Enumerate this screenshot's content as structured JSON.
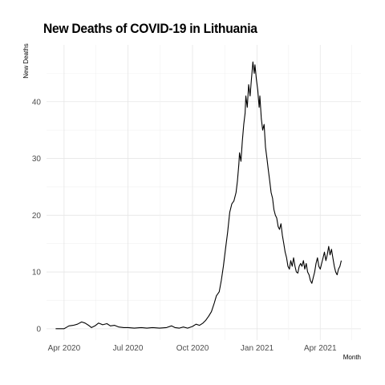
{
  "chart_data": {
    "type": "line",
    "title": "New Deaths of COVID-19 in Lithuania",
    "xlabel": "Month",
    "ylabel": "New Deaths",
    "x_start": "2020-03-07",
    "x_end": "2021-05-29",
    "ylim": [
      -2,
      50
    ],
    "y_ticks": [
      0,
      10,
      20,
      30,
      40
    ],
    "x_ticks": [
      {
        "date": "2020-04-01",
        "label": "Apr 2020"
      },
      {
        "date": "2020-07-01",
        "label": "Jul 2020"
      },
      {
        "date": "2020-10-01",
        "label": "Oct 2020"
      },
      {
        "date": "2021-01-01",
        "label": "Jan 2021"
      },
      {
        "date": "2021-04-01",
        "label": "Apr 2021"
      }
    ],
    "grid": true,
    "line_color": "#000000",
    "series": [
      {
        "name": "",
        "points": [
          [
            "2020-03-20",
            0
          ],
          [
            "2020-04-01",
            0
          ],
          [
            "2020-04-08",
            0.5
          ],
          [
            "2020-04-14",
            0.6
          ],
          [
            "2020-04-20",
            0.8
          ],
          [
            "2020-04-26",
            1.2
          ],
          [
            "2020-05-01",
            1.0
          ],
          [
            "2020-05-06",
            0.6
          ],
          [
            "2020-05-10",
            0.2
          ],
          [
            "2020-05-15",
            0.5
          ],
          [
            "2020-05-20",
            1.0
          ],
          [
            "2020-05-26",
            0.7
          ],
          [
            "2020-06-01",
            0.9
          ],
          [
            "2020-06-06",
            0.5
          ],
          [
            "2020-06-12",
            0.6
          ],
          [
            "2020-06-18",
            0.3
          ],
          [
            "2020-06-25",
            0.2
          ],
          [
            "2020-07-01",
            0.2
          ],
          [
            "2020-07-10",
            0.1
          ],
          [
            "2020-07-20",
            0.2
          ],
          [
            "2020-07-28",
            0.1
          ],
          [
            "2020-08-05",
            0.2
          ],
          [
            "2020-08-15",
            0.1
          ],
          [
            "2020-08-25",
            0.2
          ],
          [
            "2020-09-01",
            0.5
          ],
          [
            "2020-09-06",
            0.2
          ],
          [
            "2020-09-12",
            0.1
          ],
          [
            "2020-09-18",
            0.3
          ],
          [
            "2020-09-24",
            0.1
          ],
          [
            "2020-10-01",
            0.4
          ],
          [
            "2020-10-06",
            0.8
          ],
          [
            "2020-10-11",
            0.6
          ],
          [
            "2020-10-16",
            1.0
          ],
          [
            "2020-10-20",
            1.5
          ],
          [
            "2020-10-24",
            2.2
          ],
          [
            "2020-10-28",
            3.0
          ],
          [
            "2020-11-01",
            4.5
          ],
          [
            "2020-11-04",
            5.8
          ],
          [
            "2020-11-08",
            6.5
          ],
          [
            "2020-11-11",
            8.5
          ],
          [
            "2020-11-14",
            11
          ],
          [
            "2020-11-17",
            14
          ],
          [
            "2020-11-20",
            17
          ],
          [
            "2020-11-23",
            20.5
          ],
          [
            "2020-11-26",
            22
          ],
          [
            "2020-11-29",
            22.5
          ],
          [
            "2020-12-02",
            24
          ],
          [
            "2020-12-04",
            26
          ],
          [
            "2020-12-06",
            29
          ],
          [
            "2020-12-07",
            31
          ],
          [
            "2020-12-09",
            29.5
          ],
          [
            "2020-12-11",
            33
          ],
          [
            "2020-12-13",
            36
          ],
          [
            "2020-12-15",
            38
          ],
          [
            "2020-12-16",
            41
          ],
          [
            "2020-12-18",
            39
          ],
          [
            "2020-12-20",
            43
          ],
          [
            "2020-12-22",
            41
          ],
          [
            "2020-12-24",
            44
          ],
          [
            "2020-12-26",
            47
          ],
          [
            "2020-12-28",
            45
          ],
          [
            "2020-12-29",
            46.5
          ],
          [
            "2020-12-31",
            44
          ],
          [
            "2021-01-02",
            42
          ],
          [
            "2021-01-04",
            39
          ],
          [
            "2021-01-05",
            41
          ],
          [
            "2021-01-07",
            37
          ],
          [
            "2021-01-09",
            35
          ],
          [
            "2021-01-11",
            36
          ],
          [
            "2021-01-13",
            32
          ],
          [
            "2021-01-15",
            30
          ],
          [
            "2021-01-17",
            28
          ],
          [
            "2021-01-19",
            26
          ],
          [
            "2021-01-21",
            24
          ],
          [
            "2021-01-23",
            23
          ],
          [
            "2021-01-25",
            21
          ],
          [
            "2021-01-27",
            20
          ],
          [
            "2021-01-29",
            19.5
          ],
          [
            "2021-01-31",
            18
          ],
          [
            "2021-02-02",
            17.5
          ],
          [
            "2021-02-04",
            18.5
          ],
          [
            "2021-02-06",
            16.5
          ],
          [
            "2021-02-08",
            15
          ],
          [
            "2021-02-10",
            13.5
          ],
          [
            "2021-02-12",
            12.5
          ],
          [
            "2021-02-14",
            11
          ],
          [
            "2021-02-16",
            10.5
          ],
          [
            "2021-02-18",
            12
          ],
          [
            "2021-02-20",
            11
          ],
          [
            "2021-02-22",
            12.5
          ],
          [
            "2021-02-24",
            11
          ],
          [
            "2021-02-26",
            10
          ],
          [
            "2021-02-28",
            9.8
          ],
          [
            "2021-03-02",
            11
          ],
          [
            "2021-03-04",
            11.5
          ],
          [
            "2021-03-06",
            11
          ],
          [
            "2021-03-08",
            12
          ],
          [
            "2021-03-10",
            10.5
          ],
          [
            "2021-03-12",
            11.5
          ],
          [
            "2021-03-14",
            10
          ],
          [
            "2021-03-16",
            9.5
          ],
          [
            "2021-03-18",
            8.5
          ],
          [
            "2021-03-20",
            8.0
          ],
          [
            "2021-03-22",
            9.0
          ],
          [
            "2021-03-24",
            10
          ],
          [
            "2021-03-26",
            11.5
          ],
          [
            "2021-03-28",
            12.5
          ],
          [
            "2021-03-30",
            11
          ],
          [
            "2021-04-01",
            10.5
          ],
          [
            "2021-04-03",
            11.5
          ],
          [
            "2021-04-05",
            12.5
          ],
          [
            "2021-04-07",
            13.5
          ],
          [
            "2021-04-09",
            12
          ],
          [
            "2021-04-11",
            13
          ],
          [
            "2021-04-13",
            14.5
          ],
          [
            "2021-04-15",
            13
          ],
          [
            "2021-04-17",
            14
          ],
          [
            "2021-04-19",
            12.5
          ],
          [
            "2021-04-21",
            11
          ],
          [
            "2021-04-23",
            10
          ],
          [
            "2021-04-25",
            9.5
          ],
          [
            "2021-04-27",
            10.5
          ],
          [
            "2021-04-29",
            11
          ],
          [
            "2021-05-01",
            12
          ]
        ]
      }
    ]
  }
}
